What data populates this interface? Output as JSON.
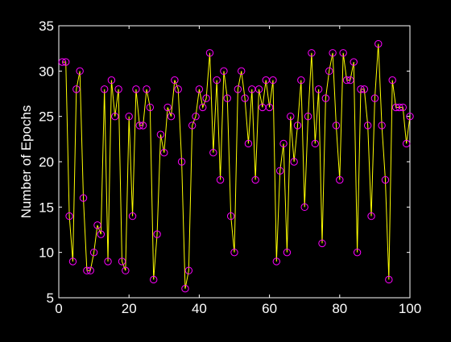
{
  "chart_data": {
    "type": "line",
    "title": "",
    "xlabel": "",
    "ylabel": "Number of Epochs",
    "xlim": [
      0,
      100
    ],
    "ylim": [
      5,
      35
    ],
    "xticks": [
      0,
      20,
      40,
      60,
      80,
      100
    ],
    "yticks": [
      5,
      10,
      15,
      20,
      25,
      30,
      35
    ],
    "xtick_labels": [
      "0",
      "20",
      "40",
      "60",
      "80",
      "100"
    ],
    "ytick_labels": [
      "5",
      "10",
      "15",
      "20",
      "25",
      "30",
      "35"
    ],
    "grid": false,
    "colors": {
      "background": "#000000",
      "axes": "#ffffff",
      "line": "#ffff00",
      "marker": "#ff00ff"
    },
    "series": [
      {
        "x": [
          1,
          2,
          3,
          4,
          5,
          6,
          7,
          8,
          9,
          10,
          11,
          12,
          13,
          14,
          15,
          16,
          17,
          18,
          19,
          20,
          21,
          22,
          23,
          24,
          25,
          26,
          27,
          28,
          29,
          30,
          31,
          32,
          33,
          34,
          35,
          36,
          37,
          38,
          39,
          40,
          41,
          42,
          43,
          44,
          45,
          46,
          47,
          48,
          49,
          50,
          51,
          52,
          53,
          54,
          55,
          56,
          57,
          58,
          59,
          60,
          61,
          62,
          63,
          64,
          65,
          66,
          67,
          68,
          69,
          70,
          71,
          72,
          73,
          74,
          75,
          76,
          77,
          78,
          79,
          80,
          81,
          82,
          83,
          84,
          85,
          86,
          87,
          88,
          89,
          90,
          91,
          92,
          93,
          94,
          95,
          96,
          97,
          98,
          99,
          100
        ],
        "y": [
          31,
          31,
          14,
          9,
          28,
          30,
          16,
          8,
          8,
          10,
          13,
          12,
          28,
          9,
          29,
          25,
          28,
          9,
          8,
          25,
          14,
          28,
          24,
          24,
          28,
          26,
          7,
          12,
          23,
          21,
          26,
          25,
          29,
          28,
          20,
          6,
          8,
          24,
          25,
          28,
          26,
          27,
          32,
          21,
          29,
          18,
          30,
          27,
          14,
          10,
          28,
          30,
          27,
          22,
          28,
          18,
          28,
          26,
          29,
          26,
          29,
          9,
          19,
          22,
          10,
          25,
          20,
          24,
          29,
          15,
          25,
          32,
          22,
          28,
          11,
          27,
          30,
          32,
          24,
          18,
          32,
          29,
          29,
          31,
          10,
          28,
          28,
          24,
          14,
          27,
          33,
          24,
          18,
          7,
          29,
          26,
          26,
          26,
          22,
          25
        ]
      }
    ]
  }
}
